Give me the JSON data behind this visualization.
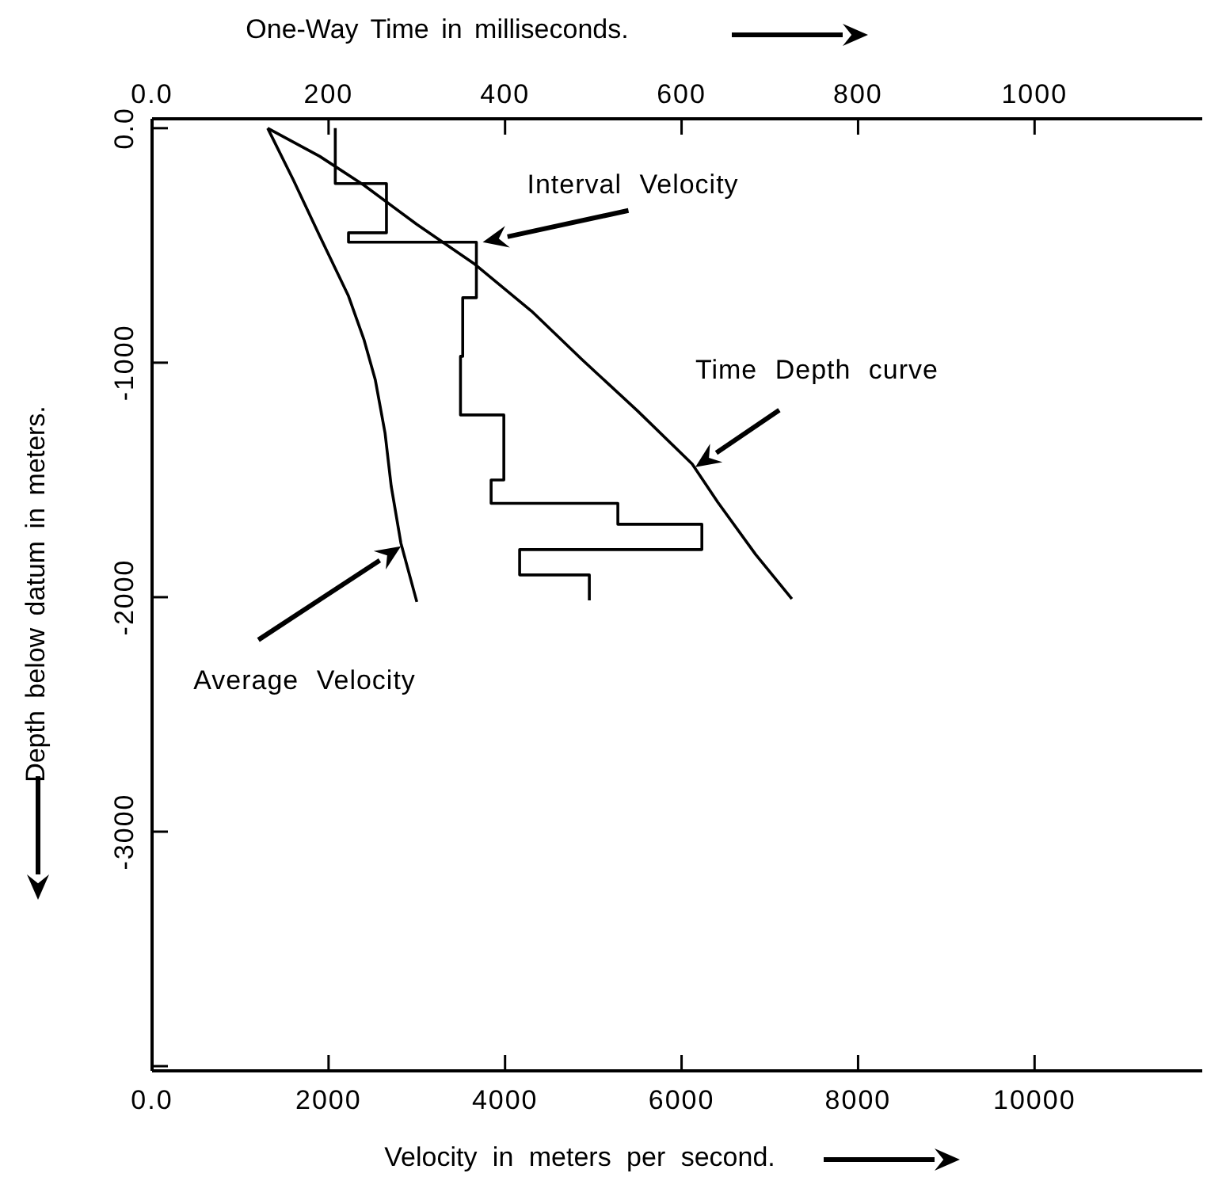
{
  "chart_data": {
    "type": "line",
    "xlabel": "Velocity in meters per second.",
    "x2label": "One-Way Time in milliseconds.",
    "ylabel": "Depth below datum in meters.",
    "xlim": [
      0,
      11900
    ],
    "xticks": [
      {
        "value": 0,
        "label": "0.0"
      },
      2000,
      4000,
      6000,
      8000,
      10000
    ],
    "x2lim": [
      0,
      1190
    ],
    "x2ticks": [
      {
        "value": 0,
        "label": "0.0"
      },
      200,
      400,
      600,
      800,
      1000
    ],
    "ylim": [
      -4020,
      40
    ],
    "yticks": [
      {
        "value": 0,
        "label": "0.0"
      },
      -1000,
      -2000,
      -3000,
      {
        "value": -4000,
        "label": null
      }
    ],
    "grid": false,
    "marker": "none",
    "line_style": "solid",
    "series": [
      {
        "name": "Interval Velocity",
        "color": "#000000",
        "x": [
          2076,
          2076,
          2656,
          2656,
          2226,
          2226,
          3675,
          3675,
          3520,
          3520,
          3495,
          3495,
          3986,
          3986,
          3842,
          3842,
          5278,
          5278,
          6230,
          6230,
          4165,
          4165,
          4955,
          4955
        ],
        "values": [
          0,
          -236,
          -236,
          -446,
          -446,
          -486,
          -486,
          -723,
          -723,
          -973,
          -973,
          -1223,
          -1223,
          -1500,
          -1500,
          -1600,
          -1600,
          -1689,
          -1689,
          -1797,
          -1797,
          -1905,
          -1905,
          -2014
        ]
      },
      {
        "name": "Time Depth curve",
        "color": "#000000",
        "axis": "x2",
        "x": [
          131,
          190,
          240,
          300,
          366,
          430,
          487,
          550,
          612,
          641,
          684,
          725
        ],
        "values": [
          0,
          -120,
          -243,
          -410,
          -581,
          -780,
          -986,
          -1205,
          -1432,
          -1595,
          -1818,
          -2007
        ]
      },
      {
        "name": "Average Velocity",
        "color": "#000000",
        "x": [
          1310,
          1600,
          1900,
          2226,
          2400,
          2530,
          2640,
          2710,
          2820,
          3000
        ],
        "values": [
          0,
          -220,
          -460,
          -716,
          -900,
          -1074,
          -1300,
          -1527,
          -1770,
          -2020
        ]
      }
    ]
  }
}
